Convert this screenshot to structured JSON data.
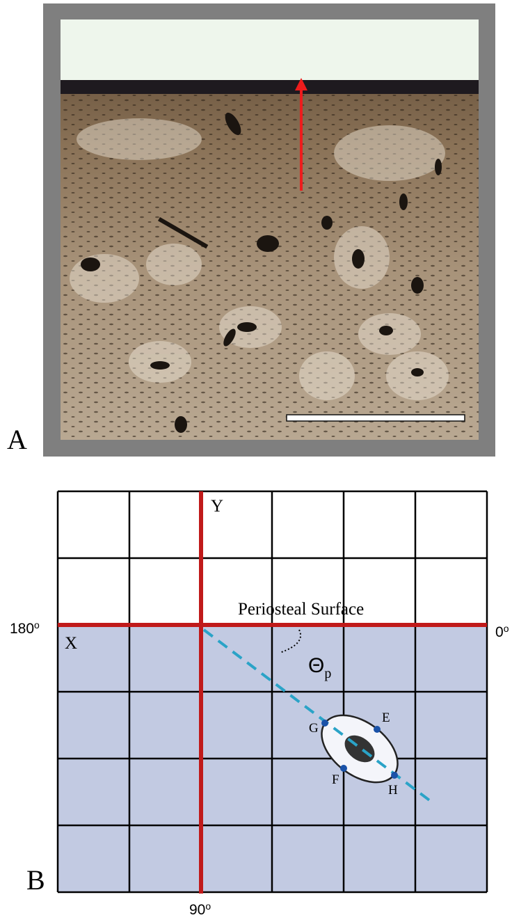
{
  "panel_a": {
    "label": "A"
  },
  "panel_b": {
    "label": "B",
    "axes": {
      "y": "Y",
      "x": "X"
    },
    "surface_label": "Periosteal Surface",
    "angles": {
      "left": {
        "text": "180",
        "sup": "o"
      },
      "right": {
        "text": "0",
        "sup": "o"
      },
      "bottom": {
        "text": "90",
        "sup": "o"
      }
    },
    "theta": {
      "text": "Θ",
      "sub": "p"
    },
    "points": [
      "E",
      "F",
      "G",
      "H"
    ]
  }
}
